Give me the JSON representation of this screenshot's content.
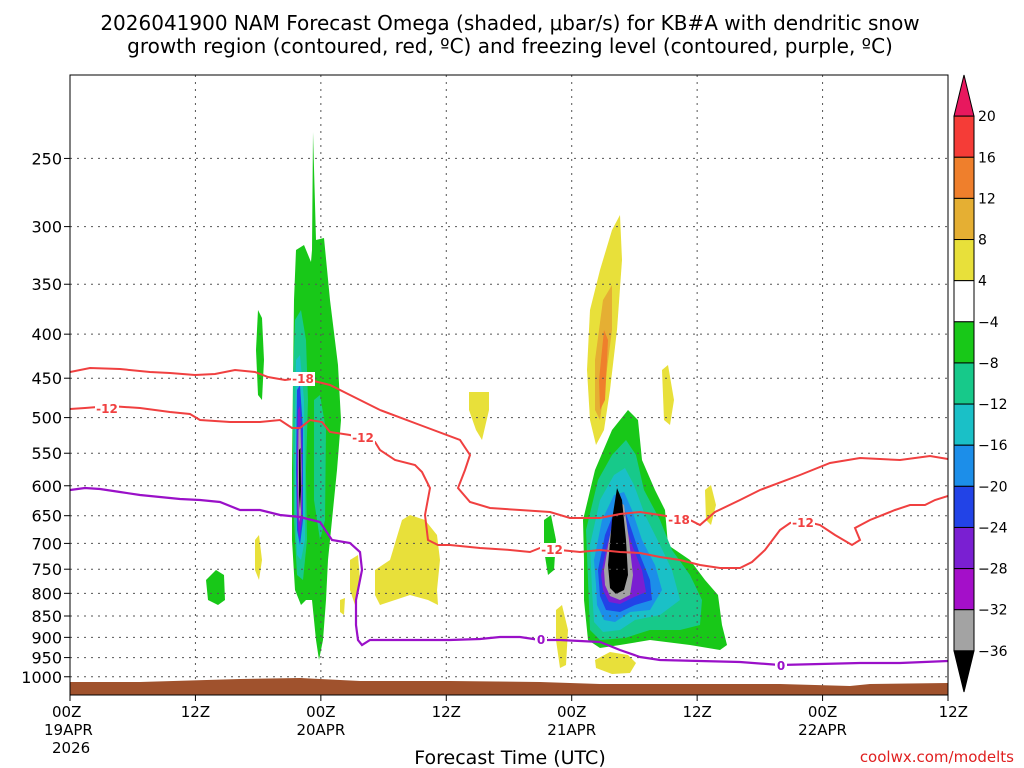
{
  "chart_data": {
    "type": "time-height cross section",
    "title_line1": "2026041900 NAM Forecast Omega (shaded, μbar/s) for KB#A with dendritic snow",
    "title_line2": "growth region (contoured, red, ºC) and freezing level (contoured, purple, ºC)",
    "xlabel": "Forecast Time (UTC)",
    "xlim_hours": [
      0,
      84
    ],
    "x_ticks": [
      {
        "hour": 0,
        "label": "00Z",
        "date": "19APR",
        "year": "2026"
      },
      {
        "hour": 12,
        "label": "12Z",
        "date": "",
        "year": ""
      },
      {
        "hour": 24,
        "label": "00Z",
        "date": "20APR",
        "year": ""
      },
      {
        "hour": 36,
        "label": "12Z",
        "date": "",
        "year": ""
      },
      {
        "hour": 48,
        "label": "00Z",
        "date": "21APR",
        "year": ""
      },
      {
        "hour": 60,
        "label": "12Z",
        "date": "",
        "year": ""
      },
      {
        "hour": 72,
        "label": "00Z",
        "date": "22APR",
        "year": ""
      },
      {
        "hour": 84,
        "label": "12Z",
        "date": "",
        "year": ""
      }
    ],
    "y_ticks": [
      250,
      300,
      350,
      400,
      450,
      500,
      550,
      600,
      650,
      700,
      750,
      800,
      850,
      900,
      950,
      1000
    ],
    "ylim_hPa": [
      1050,
      200
    ],
    "colorbar": {
      "levels": [
        20,
        16,
        12,
        8,
        4,
        -4,
        -8,
        -12,
        -16,
        -20,
        -24,
        -28,
        -32,
        -36
      ],
      "colors": [
        "#e8185e",
        "#f53c37",
        "#ef7f2c",
        "#e5af33",
        "#e8e03a",
        "#ffffff",
        "#18c818",
        "#17c98a",
        "#1ac0c7",
        "#1c8ee9",
        "#2243e7",
        "#7a1fd2",
        "#a40fc9",
        "#a3a3a3",
        "#000000"
      ]
    },
    "contours": {
      "t_minus18_label": "-18",
      "t_minus12_label": "-12",
      "freezing_label": "0"
    },
    "credit": "coolwx.com/modelts"
  }
}
